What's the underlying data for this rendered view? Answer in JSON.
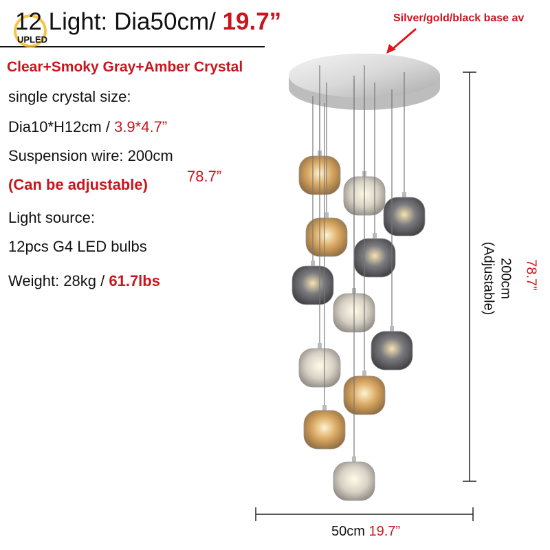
{
  "logo": "UPLED",
  "header": {
    "title": "12 Light: Dia50cm/",
    "title_inch": "19.7”"
  },
  "callout": "Silver/gold/black base av",
  "specs": {
    "material": "Clear+Smoky Gray+Amber Crystal",
    "crystal_size_label": "single crystal size:",
    "crystal_size": "Dia10*H12cm /",
    "crystal_size_inch": "3.9*4.7”",
    "wire": "Suspension wire: 200cm",
    "adjustable": "(Can be adjustable)",
    "wire_inch": "78.7”",
    "light_source_label": "Light source:",
    "light_source": "12pcs G4 LED bulbs",
    "weight": "Weight: 28kg /",
    "weight_lbs": "61.7lbs"
  },
  "dimensions": {
    "width": "50cm",
    "width_inch": "19.7”",
    "height": "200cm",
    "height_note": "(Adjustable)",
    "height_inch": "78.7”"
  }
}
